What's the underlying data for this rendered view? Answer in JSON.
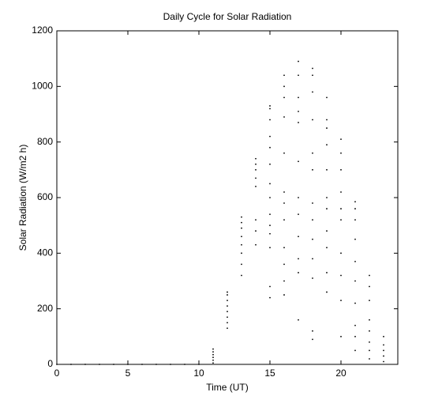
{
  "chart_data": {
    "type": "scatter",
    "title": "Daily Cycle for Solar Radiation",
    "x_label": "Time (UT)",
    "y_label": "Solar Radiation (W/m2 h)",
    "xlim": [
      0,
      24
    ],
    "ylim": [
      0,
      1200
    ],
    "xticks": [
      0,
      5,
      10,
      15,
      20
    ],
    "yticks": [
      0,
      200,
      400,
      600,
      800,
      1000,
      1200
    ],
    "color": "#000000",
    "x": [
      0,
      1,
      2,
      3,
      4,
      5,
      6,
      7,
      8,
      9,
      10,
      11,
      11,
      11,
      11,
      11,
      11,
      12,
      12,
      12,
      12,
      12,
      12,
      12,
      12,
      13,
      13,
      13,
      13,
      13,
      13,
      13,
      13,
      14,
      14,
      14,
      14,
      14,
      14,
      14,
      14,
      15,
      15,
      15,
      15,
      15,
      15,
      15,
      15,
      15,
      15,
      15,
      15,
      15,
      15,
      16,
      16,
      16,
      16,
      16,
      16,
      16,
      16,
      16,
      16,
      16,
      16,
      17,
      17,
      17,
      17,
      17,
      17,
      17,
      17,
      17,
      17,
      17,
      17,
      18,
      18,
      18,
      18,
      18,
      18,
      18,
      18,
      18,
      18,
      18,
      18,
      18,
      19,
      19,
      19,
      19,
      19,
      19,
      19,
      19,
      19,
      19,
      19,
      20,
      20,
      20,
      20,
      20,
      20,
      20,
      20,
      20,
      20,
      21,
      21,
      21,
      21,
      21,
      21,
      21,
      21,
      21,
      21,
      22,
      22,
      22,
      22,
      22,
      22,
      22,
      22,
      23,
      23,
      23,
      23,
      23
    ],
    "values": [
      0,
      0,
      0,
      0,
      0,
      0,
      0,
      0,
      0,
      0,
      0,
      5,
      15,
      25,
      35,
      45,
      55,
      130,
      150,
      170,
      190,
      210,
      230,
      250,
      260,
      320,
      360,
      400,
      430,
      460,
      490,
      510,
      530,
      430,
      480,
      520,
      640,
      670,
      700,
      720,
      740,
      240,
      280,
      420,
      470,
      500,
      540,
      600,
      650,
      720,
      780,
      820,
      880,
      920,
      930,
      250,
      300,
      360,
      420,
      520,
      580,
      620,
      760,
      890,
      960,
      1000,
      1040,
      160,
      330,
      380,
      460,
      540,
      600,
      730,
      870,
      910,
      960,
      1040,
      1090,
      90,
      120,
      310,
      380,
      450,
      520,
      580,
      700,
      760,
      880,
      980,
      1040,
      1065,
      260,
      330,
      420,
      480,
      560,
      600,
      700,
      790,
      850,
      880,
      960,
      100,
      230,
      320,
      400,
      520,
      560,
      620,
      700,
      760,
      810,
      50,
      100,
      140,
      220,
      300,
      370,
      450,
      520,
      560,
      585,
      20,
      50,
      80,
      120,
      160,
      230,
      280,
      320,
      10,
      30,
      50,
      70,
      100
    ]
  }
}
